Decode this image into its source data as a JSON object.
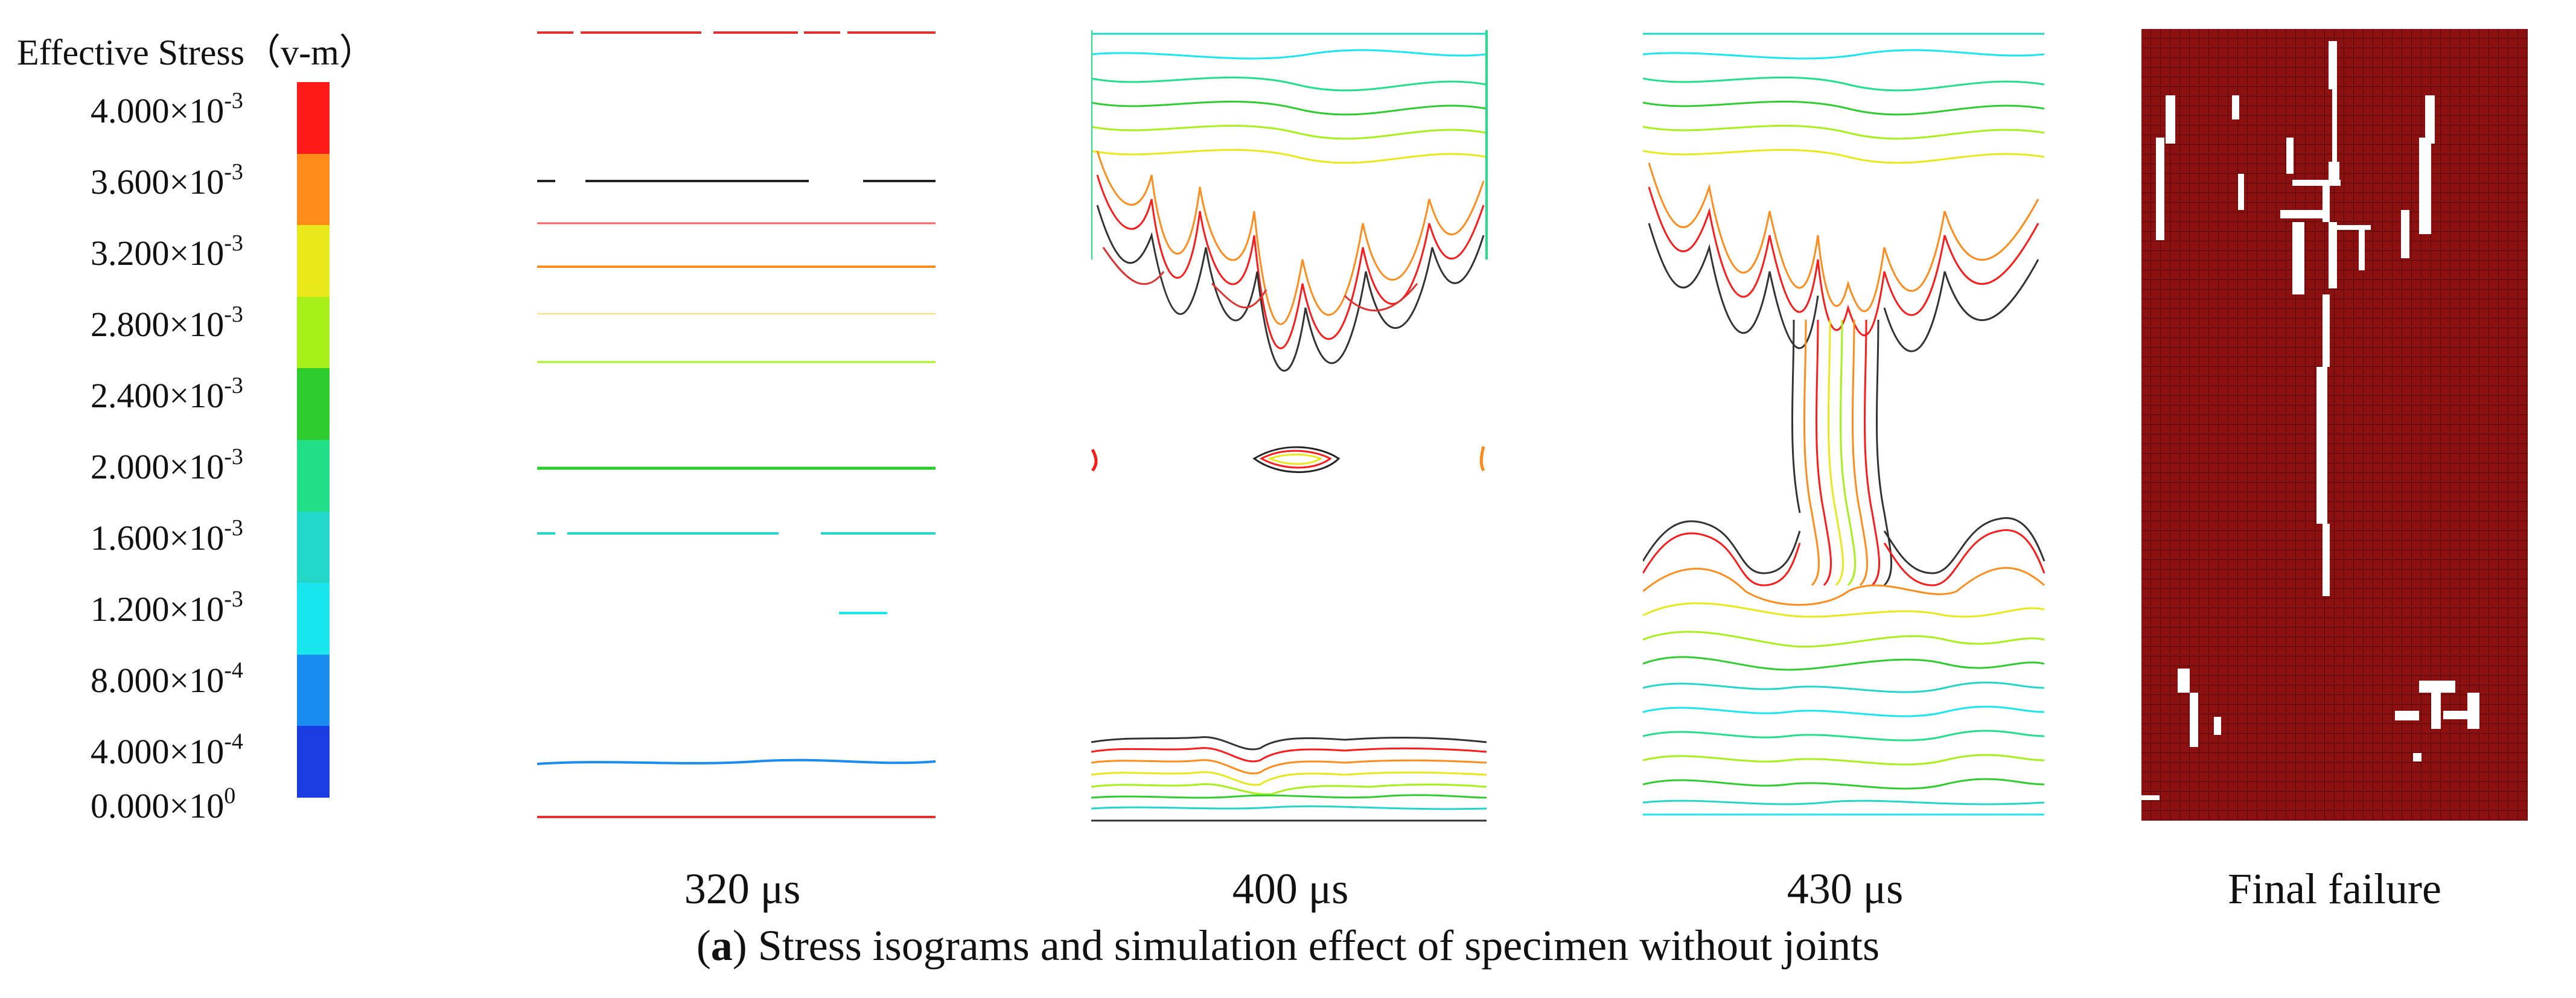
{
  "legend": {
    "title": "Effective Stress（v-m）",
    "ticks": [
      {
        "mantissa": "4.000",
        "exp": "-3"
      },
      {
        "mantissa": "3.600",
        "exp": "-3"
      },
      {
        "mantissa": "3.200",
        "exp": "-3"
      },
      {
        "mantissa": "2.800",
        "exp": "-3"
      },
      {
        "mantissa": "2.400",
        "exp": "-3"
      },
      {
        "mantissa": "2.000",
        "exp": "-3"
      },
      {
        "mantissa": "1.600",
        "exp": "-3"
      },
      {
        "mantissa": "1.200",
        "exp": "-3"
      },
      {
        "mantissa": "8.000",
        "exp": "-4"
      },
      {
        "mantissa": "4.000",
        "exp": "-4"
      },
      {
        "mantissa": "0.000",
        "exp": "0"
      }
    ],
    "times": "×10",
    "colors": [
      "#ff1a1a",
      "#ff8c1a",
      "#e8e81a",
      "#a8f01a",
      "#2ecc2e",
      "#22e08a",
      "#22d6c8",
      "#1ae6f0",
      "#1a8cf0",
      "#1a3ce0"
    ]
  },
  "panels": [
    {
      "label": "320 μs"
    },
    {
      "label": "400 μs"
    },
    {
      "label": "430 μs"
    },
    {
      "label": "Final failure"
    }
  ],
  "caption": {
    "letter": "a",
    "text": " Stress isograms and simulation effect of specimen without joints"
  }
}
